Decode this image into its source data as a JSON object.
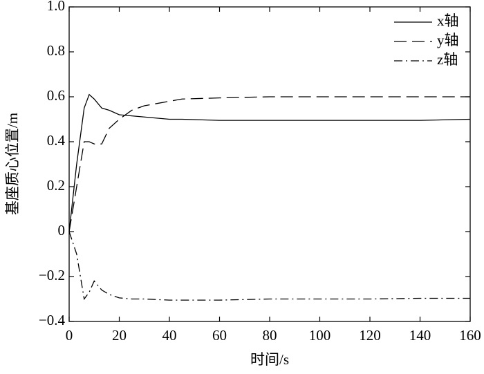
{
  "chart_data": {
    "type": "line",
    "xlabel": "时间/s",
    "ylabel": "基座质心位置/m",
    "x": [
      0,
      3,
      6,
      8,
      10,
      13,
      16,
      20,
      25,
      30,
      40,
      45,
      60,
      80,
      100,
      120,
      140,
      160
    ],
    "series": [
      {
        "name": "x轴",
        "color": "#000000",
        "dash": "solid",
        "values": [
          0,
          0.3,
          0.55,
          0.61,
          0.59,
          0.55,
          0.54,
          0.52,
          0.515,
          0.51,
          0.5,
          0.5,
          0.495,
          0.495,
          0.495,
          0.495,
          0.495,
          0.5
        ]
      },
      {
        "name": "y轴",
        "color": "#000000",
        "dash": "dashed",
        "values": [
          0,
          0.2,
          0.4,
          0.4,
          0.39,
          0.39,
          0.46,
          0.5,
          0.54,
          0.56,
          0.58,
          0.59,
          0.595,
          0.6,
          0.6,
          0.6,
          0.6,
          0.6
        ]
      },
      {
        "name": "z轴",
        "color": "#000000",
        "dash": "dashdot",
        "values": [
          0,
          -0.1,
          -0.3,
          -0.27,
          -0.22,
          -0.26,
          -0.28,
          -0.295,
          -0.3,
          -0.3,
          -0.305,
          -0.305,
          -0.305,
          -0.3,
          -0.3,
          -0.3,
          -0.297,
          -0.297
        ]
      }
    ],
    "xlim": [
      0,
      160
    ],
    "xticks": [
      0,
      20,
      40,
      60,
      80,
      100,
      120,
      140,
      160
    ],
    "ylim": [
      -0.4,
      1.0
    ],
    "yticks": [
      {
        "value": -0.4,
        "label": "−0.4"
      },
      {
        "value": -0.2,
        "label": "−0.2"
      },
      0,
      0.2,
      0.4,
      0.6,
      0.8,
      {
        "value": 1.0,
        "label": "1.0"
      }
    ],
    "legend": "top-right",
    "grid": false
  }
}
